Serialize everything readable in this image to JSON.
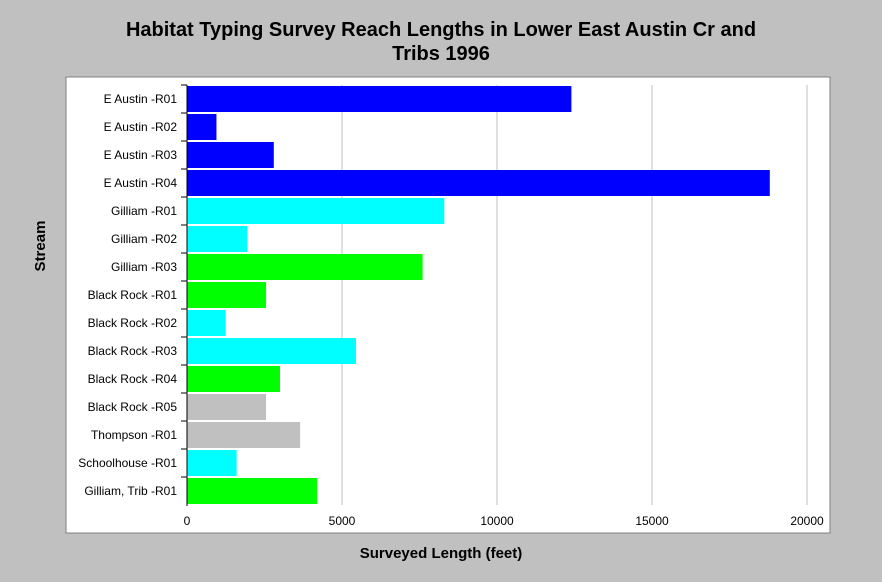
{
  "chart_data": {
    "type": "bar",
    "orientation": "horizontal",
    "title_lines": [
      "Habitat Typing Survey Reach Lengths in Lower East Austin Cr and",
      "Tribs 1996"
    ],
    "xlabel": "Surveyed Length (feet)",
    "ylabel": "Stream",
    "xlim": [
      0,
      20000
    ],
    "xticks": [
      0,
      5000,
      10000,
      15000,
      20000
    ],
    "grid": "vertical",
    "legend": "none",
    "categories": [
      "E Austin -R01",
      "E Austin -R02",
      "E Austin -R03",
      "E Austin -R04",
      "Gilliam -R01",
      "Gilliam -R02",
      "Gilliam -R03",
      "Black Rock -R01",
      "Black Rock -R02",
      "Black Rock -R03",
      "Black Rock -R04",
      "Black Rock -R05",
      "Thompson -R01",
      "Schoolhouse -R01",
      "Gilliam, Trib -R01"
    ],
    "values": [
      12400,
      950,
      2800,
      18800,
      8300,
      1950,
      7600,
      2550,
      1250,
      5450,
      3000,
      2550,
      3650,
      1600,
      4200
    ],
    "bar_colors": [
      "#0000ff",
      "#0000ff",
      "#0000ff",
      "#0000ff",
      "#00ffff",
      "#00ffff",
      "#00ff00",
      "#00ff00",
      "#00ffff",
      "#00ffff",
      "#00ff00",
      "#c0c0c0",
      "#c0c0c0",
      "#00ffff",
      "#00ff00"
    ]
  },
  "colors": {
    "background": "#c0c0c0",
    "plot_background": "#ffffff",
    "gridline": "#c0c0c0"
  }
}
